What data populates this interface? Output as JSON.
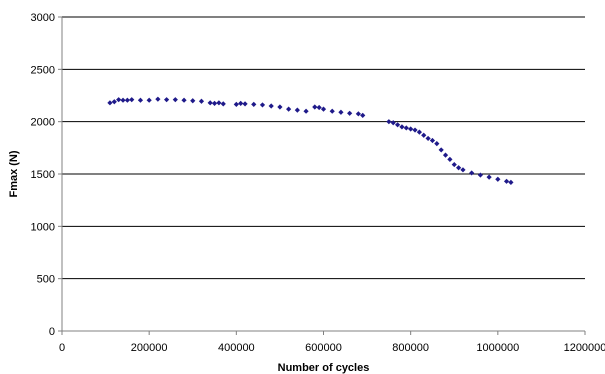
{
  "chart_data": {
    "type": "scatter",
    "title": "",
    "xlabel": "Number of cycles",
    "ylabel": "Fmax  (N)",
    "xlim": [
      0,
      1200000
    ],
    "ylim": [
      0,
      3000
    ],
    "xticks": [
      0,
      200000,
      400000,
      600000,
      800000,
      1000000,
      1200000
    ],
    "yticks": [
      0,
      500,
      1000,
      1500,
      2000,
      2500,
      3000
    ],
    "xtick_labels": [
      "0",
      "200000",
      "400000",
      "600000",
      "800000",
      "1000000",
      "1200000"
    ],
    "ytick_labels": [
      "0",
      "500",
      "1000",
      "1500",
      "2000",
      "2500",
      "3000"
    ],
    "grid": "horizontal",
    "legend": "none",
    "marker_color": "#1f1a8a",
    "series": [
      {
        "name": "",
        "x": [
          110000,
          120000,
          130000,
          140000,
          150000,
          160000,
          180000,
          200000,
          220000,
          240000,
          260000,
          280000,
          300000,
          320000,
          340000,
          350000,
          360000,
          370000,
          400000,
          410000,
          420000,
          440000,
          460000,
          480000,
          500000,
          520000,
          540000,
          560000,
          580000,
          590000,
          600000,
          620000,
          640000,
          660000,
          680000,
          690000,
          750000,
          760000,
          770000,
          780000,
          790000,
          800000,
          810000,
          820000,
          830000,
          840000,
          850000,
          860000,
          870000,
          880000,
          890000,
          900000,
          910000,
          920000,
          940000,
          960000,
          980000,
          1000000,
          1020000,
          1030000
        ],
        "y": [
          2180,
          2190,
          2210,
          2205,
          2205,
          2210,
          2205,
          2205,
          2215,
          2210,
          2210,
          2205,
          2200,
          2195,
          2180,
          2175,
          2180,
          2170,
          2165,
          2175,
          2170,
          2165,
          2160,
          2150,
          2140,
          2120,
          2110,
          2100,
          2140,
          2135,
          2120,
          2100,
          2090,
          2080,
          2075,
          2060,
          2000,
          1990,
          1970,
          1950,
          1940,
          1930,
          1920,
          1900,
          1870,
          1840,
          1820,
          1790,
          1730,
          1680,
          1640,
          1590,
          1560,
          1540,
          1510,
          1490,
          1470,
          1450,
          1430,
          1420
        ]
      }
    ]
  }
}
